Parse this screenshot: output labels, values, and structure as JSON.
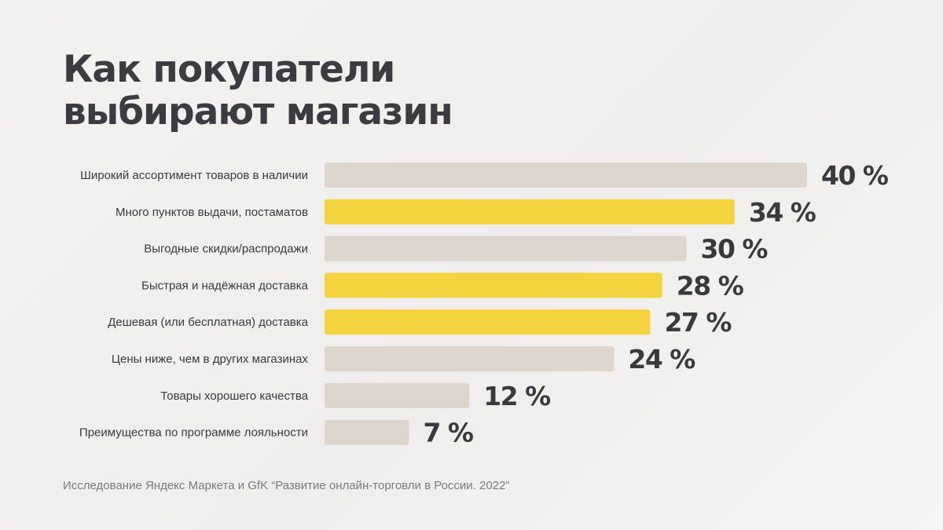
{
  "title_lines": [
    "Как покупатели",
    "выбирают магазин"
  ],
  "source": "Исследование Яндекс Маркета и GfK “Развитие онлайн-торговли в России. 2022”",
  "colors": {
    "neutral_bar": "#dcd6ce",
    "highlight_bar": "#f3d43f",
    "text": "#3a3a3e",
    "background": "#f2f2f1"
  },
  "chart_data": {
    "type": "bar",
    "orientation": "horizontal",
    "title": "Как покупатели выбирают магазин",
    "xlabel": "",
    "ylabel": "",
    "xlim": [
      0,
      40
    ],
    "unit": "%",
    "grid": false,
    "categories": [
      "Широкий ассортимент товаров в наличии",
      "Много пунктов выдачи, постаматов",
      "Выгодные скидки/распродажи",
      "Быстрая и надёжная доставка",
      "Дешевая (или бесплатная) доставка",
      "Цены ниже, чем в других магазинах",
      "Товары хорошего качества",
      "Преимущества по программе лояльности"
    ],
    "values": [
      40,
      34,
      30,
      28,
      27,
      24,
      12,
      7
    ],
    "value_labels": [
      "40 %",
      "34 %",
      "30 %",
      "28 %",
      "27 %",
      "24 %",
      "12 %",
      "7 %"
    ],
    "highlighted": [
      false,
      true,
      false,
      true,
      true,
      false,
      false,
      false
    ]
  }
}
